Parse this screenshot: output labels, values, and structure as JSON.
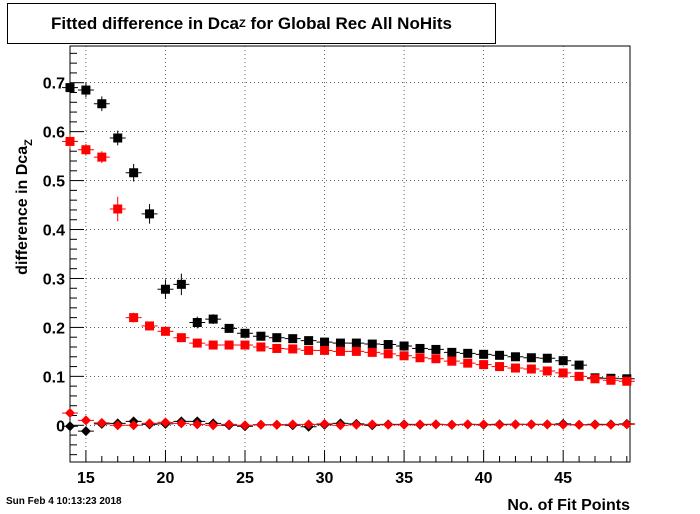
{
  "header": {
    "title_main": "Fitted difference in Dca",
    "title_sub": "Z",
    "title_rest": " for Global Rec All NoHits"
  },
  "footer": {
    "datestamp": "Sun Feb  4 10:13:23 2018"
  },
  "chart_data": {
    "type": "scatter",
    "xlabel": "No. of Fit Points",
    "ylabel_main": "difference in Dca",
    "ylabel_sub": "Z",
    "xlim": [
      14,
      49.2
    ],
    "ylim": [
      -0.075,
      0.775
    ],
    "xticks": [
      15,
      20,
      25,
      30,
      35,
      40,
      45
    ],
    "yticks": [
      0,
      0.1,
      0.2,
      0.3,
      0.4,
      0.5,
      0.6,
      0.7
    ],
    "ytick_labels": [
      "0",
      "0.1",
      "0.2",
      "0.3",
      "0.4",
      "0.5",
      "0.6",
      "0.7"
    ],
    "grid": true,
    "series": [
      {
        "color": "#000000",
        "marker": "square",
        "x": [
          14,
          15,
          16,
          17,
          18,
          19,
          20,
          21,
          22,
          23,
          24,
          25,
          26,
          27,
          28,
          29,
          30,
          31,
          32,
          33,
          34,
          35,
          36,
          37,
          38,
          39,
          40,
          41,
          42,
          43,
          44,
          45,
          46,
          47,
          48,
          49
        ],
        "y": [
          0.69,
          0.685,
          0.657,
          0.587,
          0.516,
          0.432,
          0.278,
          0.288,
          0.21,
          0.217,
          0.198,
          0.188,
          0.182,
          0.179,
          0.177,
          0.173,
          0.17,
          0.168,
          0.168,
          0.166,
          0.165,
          0.162,
          0.157,
          0.155,
          0.149,
          0.147,
          0.145,
          0.143,
          0.14,
          0.138,
          0.137,
          0.132,
          0.123,
          0.097,
          0.096,
          0.095
        ],
        "yerr": [
          0.02,
          0.015,
          0.015,
          0.015,
          0.018,
          0.02,
          0.02,
          0.022,
          0.012,
          0.01,
          0.008,
          0.008,
          0.007,
          0.007,
          0.007,
          0.006,
          0.006,
          0.006,
          0.006,
          0.006,
          0.006,
          0.006,
          0.006,
          0.006,
          0.006,
          0.006,
          0.006,
          0.006,
          0.006,
          0.006,
          0.006,
          0.006,
          0.006,
          0.006,
          0.006,
          0.006
        ]
      },
      {
        "color": "#ff0000",
        "marker": "square",
        "x": [
          14,
          15,
          16,
          17,
          18,
          19,
          20,
          21,
          22,
          23,
          24,
          25,
          26,
          27,
          28,
          29,
          30,
          31,
          32,
          33,
          34,
          35,
          36,
          37,
          38,
          39,
          40,
          41,
          42,
          43,
          44,
          45,
          46,
          47,
          48,
          49
        ],
        "y": [
          0.58,
          0.563,
          0.548,
          0.442,
          0.22,
          0.203,
          0.192,
          0.179,
          0.168,
          0.164,
          0.164,
          0.164,
          0.16,
          0.157,
          0.156,
          0.153,
          0.153,
          0.151,
          0.151,
          0.149,
          0.146,
          0.142,
          0.138,
          0.136,
          0.131,
          0.127,
          0.124,
          0.12,
          0.117,
          0.115,
          0.111,
          0.107,
          0.1,
          0.095,
          0.092,
          0.09
        ],
        "yerr": [
          0.015,
          0.012,
          0.012,
          0.025,
          0.01,
          0.008,
          0.008,
          0.007,
          0.006,
          0.006,
          0.006,
          0.006,
          0.006,
          0.006,
          0.006,
          0.006,
          0.006,
          0.006,
          0.006,
          0.006,
          0.006,
          0.006,
          0.006,
          0.006,
          0.006,
          0.006,
          0.006,
          0.006,
          0.006,
          0.006,
          0.006,
          0.006,
          0.006,
          0.006,
          0.006,
          0.006
        ]
      },
      {
        "color": "#000000",
        "marker": "diamond",
        "x": [
          14,
          15,
          16,
          17,
          18,
          19,
          20,
          21,
          22,
          23,
          24,
          25,
          26,
          27,
          28,
          29,
          30,
          31,
          32,
          33,
          34,
          35,
          36,
          37,
          38,
          39,
          40,
          41,
          42,
          43,
          44,
          45,
          46,
          47,
          48,
          49
        ],
        "y": [
          -0.002,
          -0.012,
          0.003,
          0.004,
          0.008,
          0.002,
          0.003,
          0.008,
          0.008,
          0.004,
          0.0,
          -0.002,
          0.001,
          0.001,
          0.0,
          -0.003,
          0.001,
          0.004,
          0.003,
          0.0,
          0.002,
          0.002,
          0.001,
          0.002,
          0.001,
          0.002,
          0.001,
          0.002,
          0.002,
          0.002,
          0.002,
          0.003,
          0.001,
          0.002,
          0.002,
          0.003
        ],
        "yerr": [
          0.008,
          0.006,
          0.005,
          0.004,
          0.004,
          0.004,
          0.004,
          0.004,
          0.004,
          0.004,
          0.003,
          0.003,
          0.003,
          0.003,
          0.003,
          0.003,
          0.003,
          0.003,
          0.003,
          0.003,
          0.003,
          0.003,
          0.003,
          0.003,
          0.003,
          0.003,
          0.003,
          0.003,
          0.003,
          0.003,
          0.003,
          0.003,
          0.003,
          0.003,
          0.003,
          0.003
        ]
      },
      {
        "color": "#ff0000",
        "marker": "diamond",
        "x": [
          14,
          15,
          16,
          17,
          18,
          19,
          20,
          21,
          22,
          23,
          24,
          25,
          26,
          27,
          28,
          29,
          30,
          31,
          32,
          33,
          34,
          35,
          36,
          37,
          38,
          39,
          40,
          41,
          42,
          43,
          44,
          45,
          46,
          47,
          48,
          49
        ],
        "y": [
          0.025,
          0.01,
          0.005,
          0.0,
          0.0,
          0.004,
          0.006,
          0.004,
          0.002,
          0.0,
          0.002,
          0.0,
          0.001,
          0.001,
          0.002,
          0.002,
          0.003,
          0.0,
          0.001,
          0.002,
          0.001,
          0.001,
          0.002,
          0.002,
          0.001,
          0.002,
          0.002,
          0.001,
          0.002,
          0.002,
          0.002,
          0.001,
          0.001,
          0.001,
          0.001,
          0.002
        ],
        "yerr": [
          0.004,
          0.003,
          0.003,
          0.003,
          0.003,
          0.003,
          0.003,
          0.003,
          0.003,
          0.003,
          0.003,
          0.003,
          0.003,
          0.003,
          0.003,
          0.003,
          0.003,
          0.003,
          0.003,
          0.003,
          0.003,
          0.003,
          0.003,
          0.003,
          0.003,
          0.003,
          0.003,
          0.003,
          0.003,
          0.003,
          0.003,
          0.003,
          0.003,
          0.003,
          0.003,
          0.003
        ]
      }
    ]
  }
}
